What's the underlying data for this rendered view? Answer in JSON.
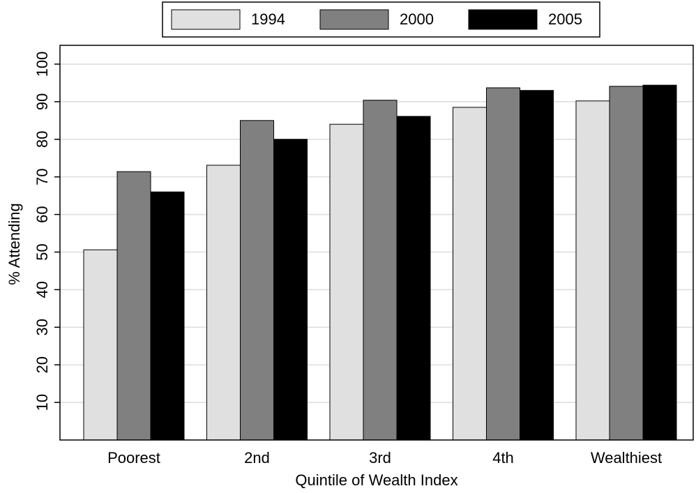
{
  "chart_data": {
    "type": "bar",
    "x_label": "Quintile of Wealth Index",
    "y_label": "% Attending",
    "categories": [
      "Poorest",
      "2nd",
      "3rd",
      "4th",
      "Wealthiest"
    ],
    "series": [
      {
        "name": "1994",
        "color": "#e0e0e0",
        "values": [
          50.6,
          73.1,
          84.0,
          88.5,
          90.2
        ]
      },
      {
        "name": "2000",
        "color": "#808080",
        "values": [
          71.4,
          85.0,
          90.4,
          93.7,
          94.1
        ]
      },
      {
        "name": "2005",
        "color": "#000000",
        "values": [
          66.0,
          80.0,
          86.1,
          93.0,
          94.4
        ]
      }
    ],
    "ylim": [
      0,
      105
    ],
    "yticks": [
      10,
      20,
      30,
      40,
      50,
      60,
      70,
      80,
      90,
      100
    ],
    "grid": true,
    "legend": "top"
  }
}
